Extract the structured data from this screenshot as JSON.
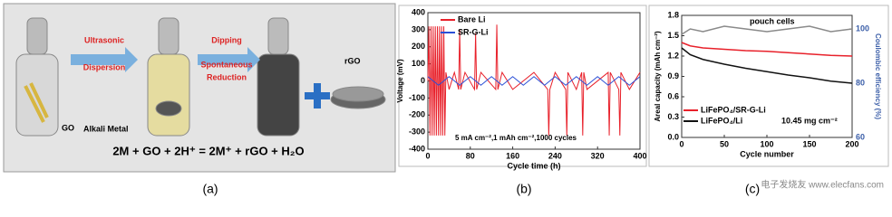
{
  "panel_a": {
    "steps": [
      "Ultrasonic",
      "Dispersion",
      "Dipping",
      "Spontaneous",
      "Reduction"
    ],
    "labels": [
      "GO",
      "Alkali Metal",
      "rGO"
    ],
    "equation": "2M + GO + 2H⁺ = 2M⁺ + rGO + H₂O"
  },
  "captions": [
    "(a)",
    "(b)",
    "(c)"
  ],
  "watermark": "电子发烧友 www.elecfans.com",
  "chart_data": [
    {
      "type": "line",
      "ylabel": "Voltage (mV)",
      "xlabel": "Cycle time (h)",
      "annotation": "5 mA cm⁻²,1 mAh cm⁻²,1000 cycles",
      "xlim": [
        0,
        400
      ],
      "xticks": [
        0,
        80,
        160,
        240,
        320,
        400
      ],
      "ylim": [
        -400,
        400
      ],
      "yticks": [
        -400,
        -300,
        -200,
        -100,
        0,
        100,
        200,
        300,
        400
      ],
      "series": [
        {
          "name": "Bare Li",
          "color": "#e8202a",
          "x": [
            0,
            2,
            4,
            6,
            8,
            10,
            12,
            14,
            16,
            18,
            20,
            22,
            24,
            26,
            28,
            30,
            32,
            34,
            40,
            50,
            58,
            60,
            62,
            70,
            88,
            90,
            92,
            100,
            128,
            130,
            132,
            140,
            160,
            200,
            226,
            228,
            230,
            240,
            260,
            262,
            264,
            280,
            290,
            292,
            294,
            300,
            340,
            342,
            344,
            360,
            362,
            364,
            380,
            400
          ],
          "values": [
            0,
            320,
            -320,
            320,
            -320,
            320,
            -320,
            320,
            -320,
            320,
            -320,
            320,
            -320,
            320,
            -320,
            320,
            -320,
            50,
            -50,
            50,
            -50,
            300,
            -50,
            50,
            -50,
            280,
            -50,
            50,
            -50,
            330,
            -50,
            50,
            -50,
            50,
            -50,
            -320,
            -50,
            50,
            -50,
            -320,
            50,
            -50,
            50,
            -320,
            50,
            -50,
            50,
            -320,
            50,
            -50,
            -320,
            50,
            -50,
            50
          ]
        },
        {
          "name": "SR-G-Li",
          "color": "#2a4fd6",
          "x": [
            0,
            20,
            40,
            60,
            80,
            100,
            120,
            140,
            160,
            180,
            200,
            220,
            240,
            260,
            280,
            300,
            320,
            340,
            360,
            380,
            400
          ],
          "values": [
            25,
            -25,
            25,
            -25,
            25,
            -25,
            25,
            -25,
            25,
            -25,
            25,
            -25,
            25,
            -25,
            25,
            -25,
            25,
            -25,
            25,
            -25,
            25
          ]
        }
      ]
    },
    {
      "type": "line",
      "ylabel": "Areal capacity (mAh cm⁻²)",
      "y2label": "Coulombic efficiency (%)",
      "xlabel": "Cycle number",
      "annotations": [
        "pouch cells",
        "10.45 mg cm⁻²"
      ],
      "xlim": [
        0,
        200
      ],
      "xticks": [
        0,
        50,
        100,
        150,
        200
      ],
      "ylim": [
        0,
        1.8
      ],
      "yticks": [
        {
          "value": 0,
          "label": "0.0"
        },
        {
          "value": 0.3,
          "label": "0.3"
        },
        {
          "value": 0.6,
          "label": "0.6"
        },
        {
          "value": 0.9,
          "label": "0.9"
        },
        {
          "value": 1.2,
          "label": "1.2"
        },
        {
          "value": 1.5,
          "label": "1.5"
        },
        {
          "value": 1.8,
          "label": "1.8"
        }
      ],
      "y2lim": [
        60,
        105
      ],
      "y2ticks": [
        60,
        80,
        100
      ],
      "series": [
        {
          "name": "LiFePO₄/SR-G-Li",
          "color": "#e8202a",
          "x": [
            0,
            10,
            25,
            50,
            75,
            100,
            125,
            150,
            175,
            200
          ],
          "values": [
            1.4,
            1.35,
            1.32,
            1.3,
            1.28,
            1.27,
            1.25,
            1.23,
            1.21,
            1.2
          ]
        },
        {
          "name": "LiFePO₄/Li",
          "color": "#111111",
          "x": [
            0,
            10,
            25,
            50,
            75,
            100,
            125,
            150,
            175,
            200
          ],
          "values": [
            1.32,
            1.22,
            1.15,
            1.08,
            1.02,
            0.97,
            0.92,
            0.88,
            0.83,
            0.8
          ]
        },
        {
          "color": "#8a8a8a",
          "axis": "y2",
          "x": [
            0,
            10,
            25,
            50,
            75,
            100,
            125,
            150,
            175,
            200
          ],
          "values": [
            98,
            100,
            99,
            101,
            100,
            99,
            100,
            101,
            99,
            100
          ]
        }
      ]
    }
  ]
}
